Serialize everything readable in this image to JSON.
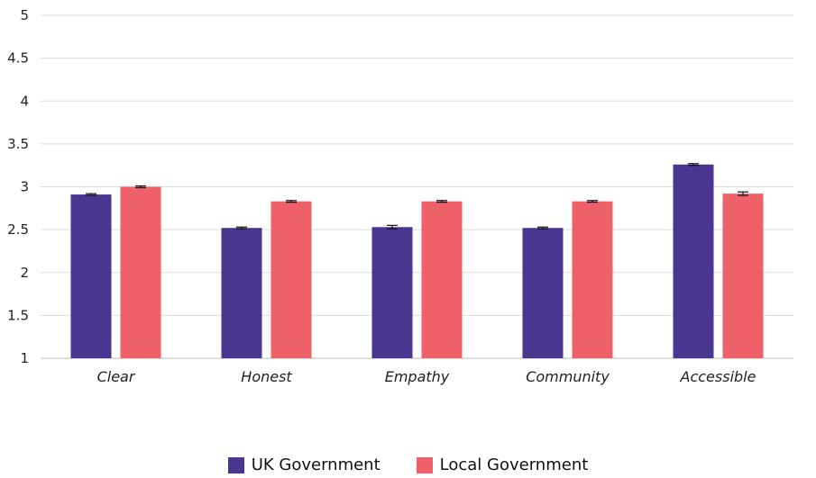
{
  "chart_data": {
    "type": "bar",
    "categories": [
      "Clear",
      "Honest",
      "Empathy",
      "Community",
      "Accessible"
    ],
    "series": [
      {
        "name": "UK Government",
        "color": "#4a3690",
        "values": [
          2.91,
          2.52,
          2.53,
          2.52,
          3.26
        ],
        "errors": [
          0.01,
          0.01,
          0.02,
          0.01,
          0.01
        ]
      },
      {
        "name": "Local Government",
        "color": "#ee6168",
        "values": [
          3.0,
          2.83,
          2.83,
          2.83,
          2.92
        ],
        "errors": [
          0.01,
          0.01,
          0.01,
          0.01,
          0.02
        ]
      }
    ],
    "yticks": [
      "1",
      "1.5",
      "2",
      "2.5",
      "3",
      "3.5",
      "4",
      "4.5",
      "5"
    ],
    "ylim": [
      1,
      5
    ],
    "grid": true,
    "legend_position": "bottom"
  }
}
